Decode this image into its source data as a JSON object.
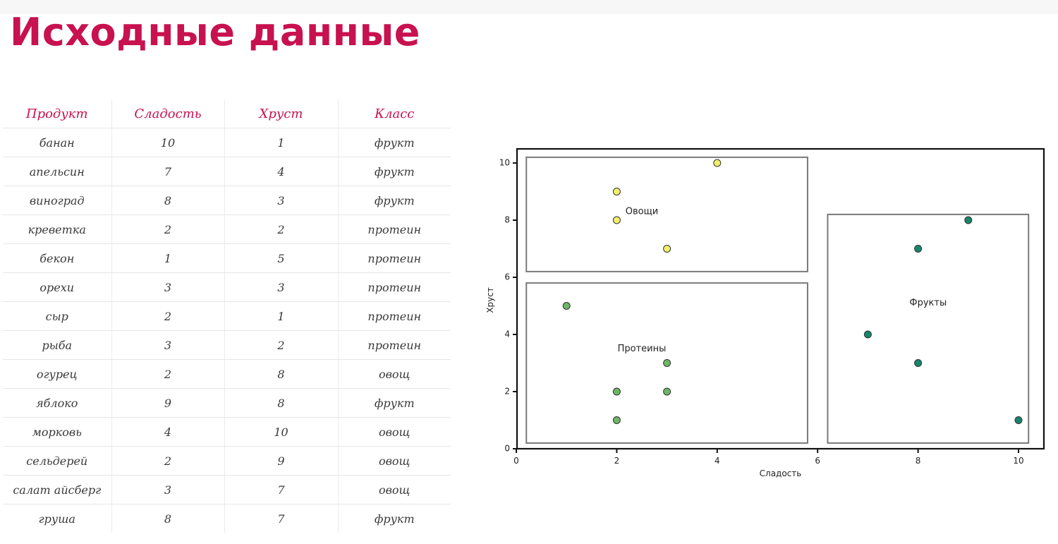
{
  "page": {
    "title": "Исходные данные"
  },
  "table": {
    "columns": [
      "Продукт",
      "Сладость",
      "Хруст",
      "Класс"
    ],
    "rows": [
      [
        "банан",
        "10",
        "1",
        "фрукт"
      ],
      [
        "апельсин",
        "7",
        "4",
        "фрукт"
      ],
      [
        "виноград",
        "8",
        "3",
        "фрукт"
      ],
      [
        "креветка",
        "2",
        "2",
        "протеин"
      ],
      [
        "бекон",
        "1",
        "5",
        "протеин"
      ],
      [
        "орехи",
        "3",
        "3",
        "протеин"
      ],
      [
        "сыр",
        "2",
        "1",
        "протеин"
      ],
      [
        "рыба",
        "3",
        "2",
        "протеин"
      ],
      [
        "огурец",
        "2",
        "8",
        "овощ"
      ],
      [
        "яблоко",
        "9",
        "8",
        "фрукт"
      ],
      [
        "морковь",
        "4",
        "10",
        "овощ"
      ],
      [
        "сельдерей",
        "2",
        "9",
        "овощ"
      ],
      [
        "салат айсберг",
        "3",
        "7",
        "овощ"
      ],
      [
        "груша",
        "8",
        "7",
        "фрукт"
      ]
    ]
  },
  "chart_data": {
    "type": "scatter",
    "xlabel": "Сладость",
    "ylabel": "Хруст",
    "xlim": [
      0,
      10.5
    ],
    "ylim": [
      0,
      10.5
    ],
    "xticks": [
      "0",
      "2",
      "4",
      "6",
      "8",
      "10"
    ],
    "yticks": [
      "0",
      "2",
      "4",
      "6",
      "8",
      "10"
    ],
    "series": [
      {
        "class": "овощ",
        "color": "#f2ee6a",
        "points": [
          [
            2,
            8
          ],
          [
            4,
            10
          ],
          [
            2,
            9
          ],
          [
            3,
            7
          ]
        ]
      },
      {
        "class": "протеин",
        "color": "#6db665",
        "points": [
          [
            2,
            2
          ],
          [
            1,
            5
          ],
          [
            3,
            3
          ],
          [
            2,
            1
          ],
          [
            3,
            2
          ]
        ]
      },
      {
        "class": "фрукт",
        "color": "#16866a",
        "points": [
          [
            10,
            1
          ],
          [
            7,
            4
          ],
          [
            8,
            3
          ],
          [
            9,
            8
          ],
          [
            8,
            7
          ]
        ]
      }
    ],
    "groups": [
      {
        "label": "Овощи",
        "x": [
          0.2,
          5.8
        ],
        "y": [
          6.2,
          10.2
        ],
        "label_at": [
          2.5,
          8.3
        ]
      },
      {
        "label": "Протеины",
        "x": [
          0.2,
          5.8
        ],
        "y": [
          0.2,
          5.8
        ],
        "label_at": [
          2.5,
          3.5
        ]
      },
      {
        "label": "Фрукты",
        "x": [
          6.2,
          10.2
        ],
        "y": [
          0.2,
          8.2
        ],
        "label_at": [
          8.2,
          5.1
        ]
      }
    ]
  }
}
